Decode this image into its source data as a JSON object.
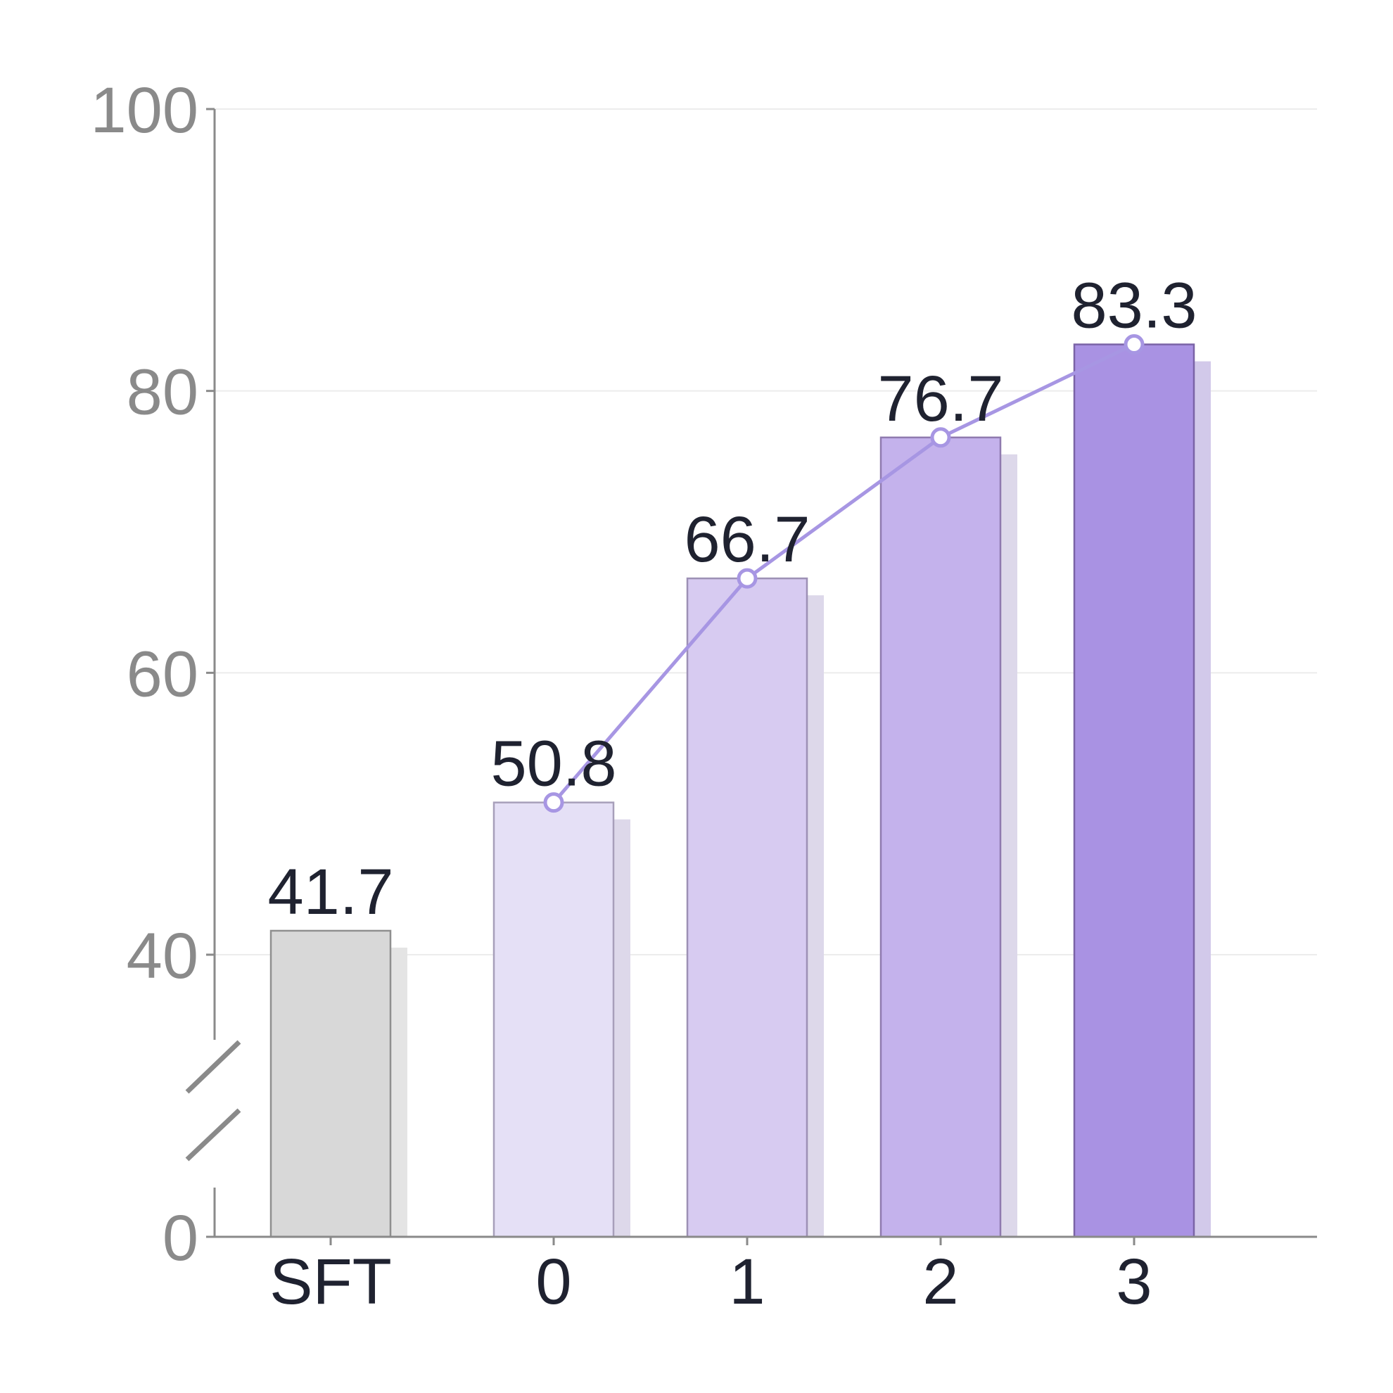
{
  "chart_data": {
    "type": "bar",
    "categories": [
      "SFT",
      "0",
      "1",
      "2",
      "3"
    ],
    "values": [
      41.7,
      50.8,
      66.7,
      76.7,
      83.3
    ],
    "value_labels": [
      "41.7",
      "50.8",
      "66.7",
      "76.7",
      "83.3"
    ],
    "shadow_values": [
      40.5,
      49.6,
      65.5,
      75.5,
      82.1
    ],
    "line_series": {
      "categories": [
        "0",
        "1",
        "2",
        "3"
      ],
      "values": [
        50.8,
        66.7,
        76.7,
        83.3
      ]
    },
    "y_ticks": [
      {
        "value": 0,
        "label": "0"
      },
      {
        "value": 40,
        "label": "40"
      },
      {
        "value": 60,
        "label": "60"
      },
      {
        "value": 80,
        "label": "80"
      },
      {
        "value": 100,
        "label": "100"
      }
    ],
    "y_axis_break": [
      0,
      40
    ],
    "ylim": [
      0,
      100
    ],
    "grid": true,
    "title": "",
    "xlabel": "",
    "ylabel": "",
    "colors": {
      "bars": [
        "#d8d8d8",
        "#e5e0f6",
        "#d7cbf1",
        "#c4b2ec",
        "#a992e3"
      ],
      "bar_strokes": [
        "#8f8f8f",
        "#a79fba",
        "#9d90b5",
        "#8f7aaf",
        "#7a63a6"
      ],
      "shadow_colors": [
        "#e4e4e4",
        "#ddd8ea",
        "#ddd8ea",
        "#ddd8ea",
        "#d2c9ea"
      ],
      "line": "#a796e3",
      "axis": "#8a8a8a",
      "grid": "#ececec",
      "tick_text": "#8a8a8a",
      "label_text": "#1f2230"
    }
  }
}
